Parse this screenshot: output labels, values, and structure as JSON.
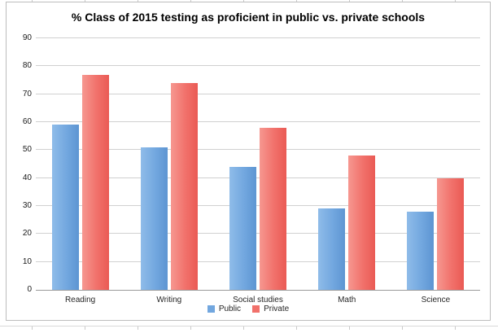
{
  "chart_data": {
    "type": "bar",
    "title": "% Class of 2015 testing as proficient in public vs. private schools",
    "categories": [
      "Reading",
      "Writing",
      "Social studies",
      "Math",
      "Science"
    ],
    "series": [
      {
        "name": "Public",
        "color": "#72a7df",
        "values": [
          59,
          51,
          44,
          29,
          28
        ]
      },
      {
        "name": "Private",
        "color": "#f1716b",
        "values": [
          77,
          74,
          58,
          48,
          40
        ]
      }
    ],
    "xlabel": "",
    "ylabel": "",
    "ylim": [
      0,
      90
    ],
    "ytick_step": 10,
    "grid": true,
    "legend_position": "bottom"
  }
}
